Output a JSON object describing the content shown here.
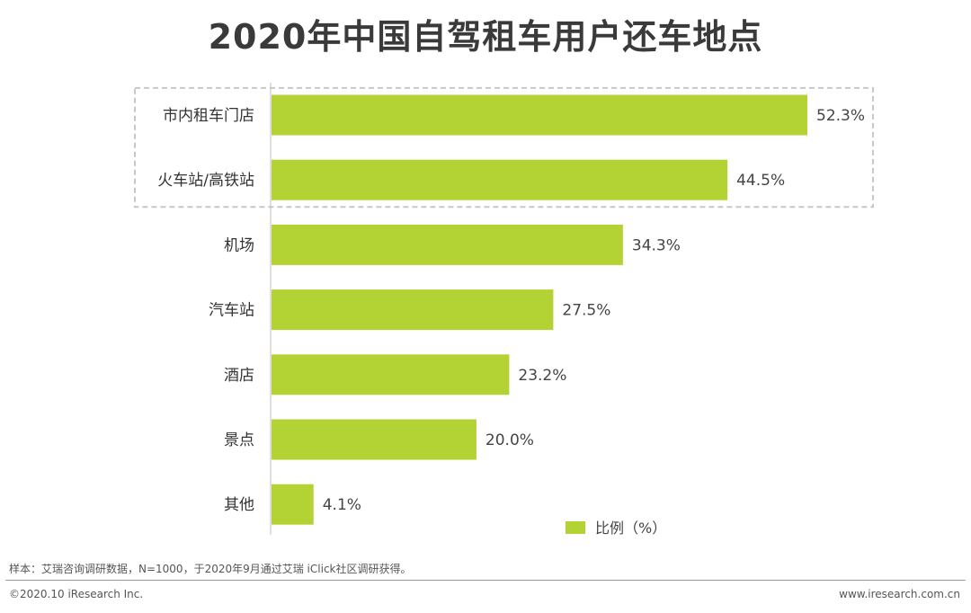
{
  "title": "2020年中国自驾租车用户还车地点",
  "chart_data": {
    "type": "bar",
    "orientation": "horizontal",
    "categories": [
      "市内租车门店",
      "火车站/高铁站",
      "机场",
      "汽车站",
      "酒店",
      "景点",
      "其他"
    ],
    "series": [
      {
        "name": "比例（%）",
        "values": [
          52.3,
          44.5,
          34.3,
          27.5,
          23.2,
          20.0,
          4.1
        ]
      }
    ],
    "value_labels": [
      "52.3%",
      "44.5%",
      "34.3%",
      "27.5%",
      "23.2%",
      "20.0%",
      "4.1%"
    ],
    "highlighted_categories": [
      "市内租车门店",
      "火车站/高铁站"
    ],
    "xlim": [
      0,
      52.3
    ],
    "legend_position": "bottom-right",
    "grid": false
  },
  "colors": {
    "bar": "#b3d334",
    "axis": "#bfbfbf",
    "highlight_border": "#c8c8c8"
  },
  "footer": {
    "source": "样本：艾瑞咨询调研数据，N=1000，于2020年9月通过艾瑞 iClick社区调研获得。",
    "copyright": "©2020.10 iResearch Inc.",
    "website": "www.iresearch.com.cn"
  }
}
